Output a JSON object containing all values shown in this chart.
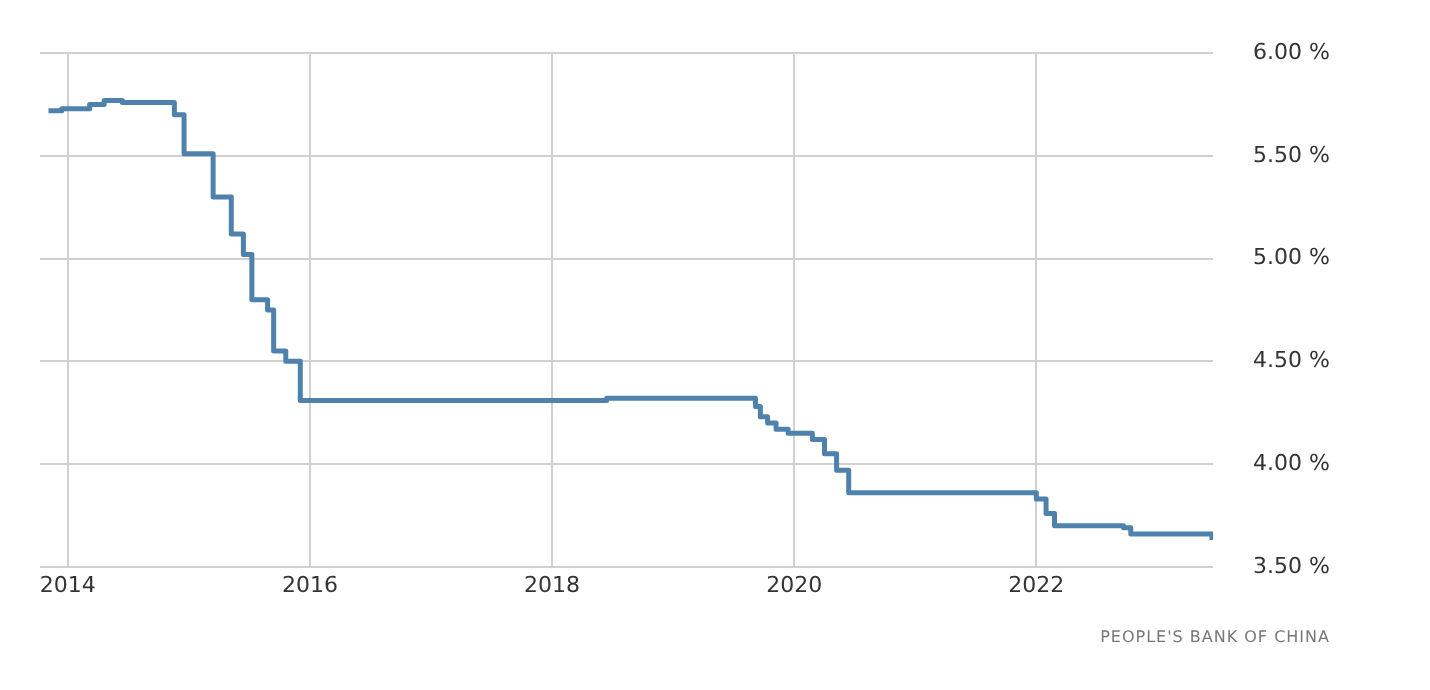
{
  "chart_data": {
    "type": "step",
    "color": "#4f81ad",
    "x": [
      2013.84,
      2013.95,
      2014.18,
      2014.3,
      2014.45,
      2014.88,
      2014.96,
      2015.2,
      2015.35,
      2015.45,
      2015.52,
      2015.65,
      2015.7,
      2015.8,
      2015.92,
      2018.45,
      2019.68,
      2019.72,
      2019.78,
      2019.85,
      2019.95,
      2020.15,
      2020.25,
      2020.35,
      2020.45,
      2022.0,
      2022.08,
      2022.15,
      2022.72,
      2022.78,
      2023.45
    ],
    "values": [
      5.72,
      5.73,
      5.75,
      5.77,
      5.76,
      5.7,
      5.51,
      5.3,
      5.12,
      5.02,
      4.8,
      4.75,
      4.55,
      4.5,
      4.31,
      4.32,
      4.28,
      4.23,
      4.2,
      4.17,
      4.15,
      4.12,
      4.05,
      3.97,
      3.86,
      3.83,
      3.76,
      3.7,
      3.69,
      3.66,
      3.63
    ],
    "xlim": [
      2013.77,
      2023.46
    ],
    "xticks": [
      2014,
      2016,
      2018,
      2020,
      2022
    ],
    "ylim": [
      3.5,
      6.0
    ],
    "yticks": [
      {
        "value": 3.5,
        "label": "3.50 %"
      },
      {
        "value": 4,
        "label": "4.00 %"
      },
      {
        "value": 4.5,
        "label": "4.50 %"
      },
      {
        "value": 5,
        "label": "5.00 %"
      },
      {
        "value": 5.5,
        "label": "5.50 %"
      },
      {
        "value": 6,
        "label": "6.00 %"
      }
    ],
    "grid": true,
    "legend": false,
    "marker": "none",
    "line_style": "solid",
    "annotations": [
      "PEOPLE'S BANK OF CHINA"
    ]
  }
}
